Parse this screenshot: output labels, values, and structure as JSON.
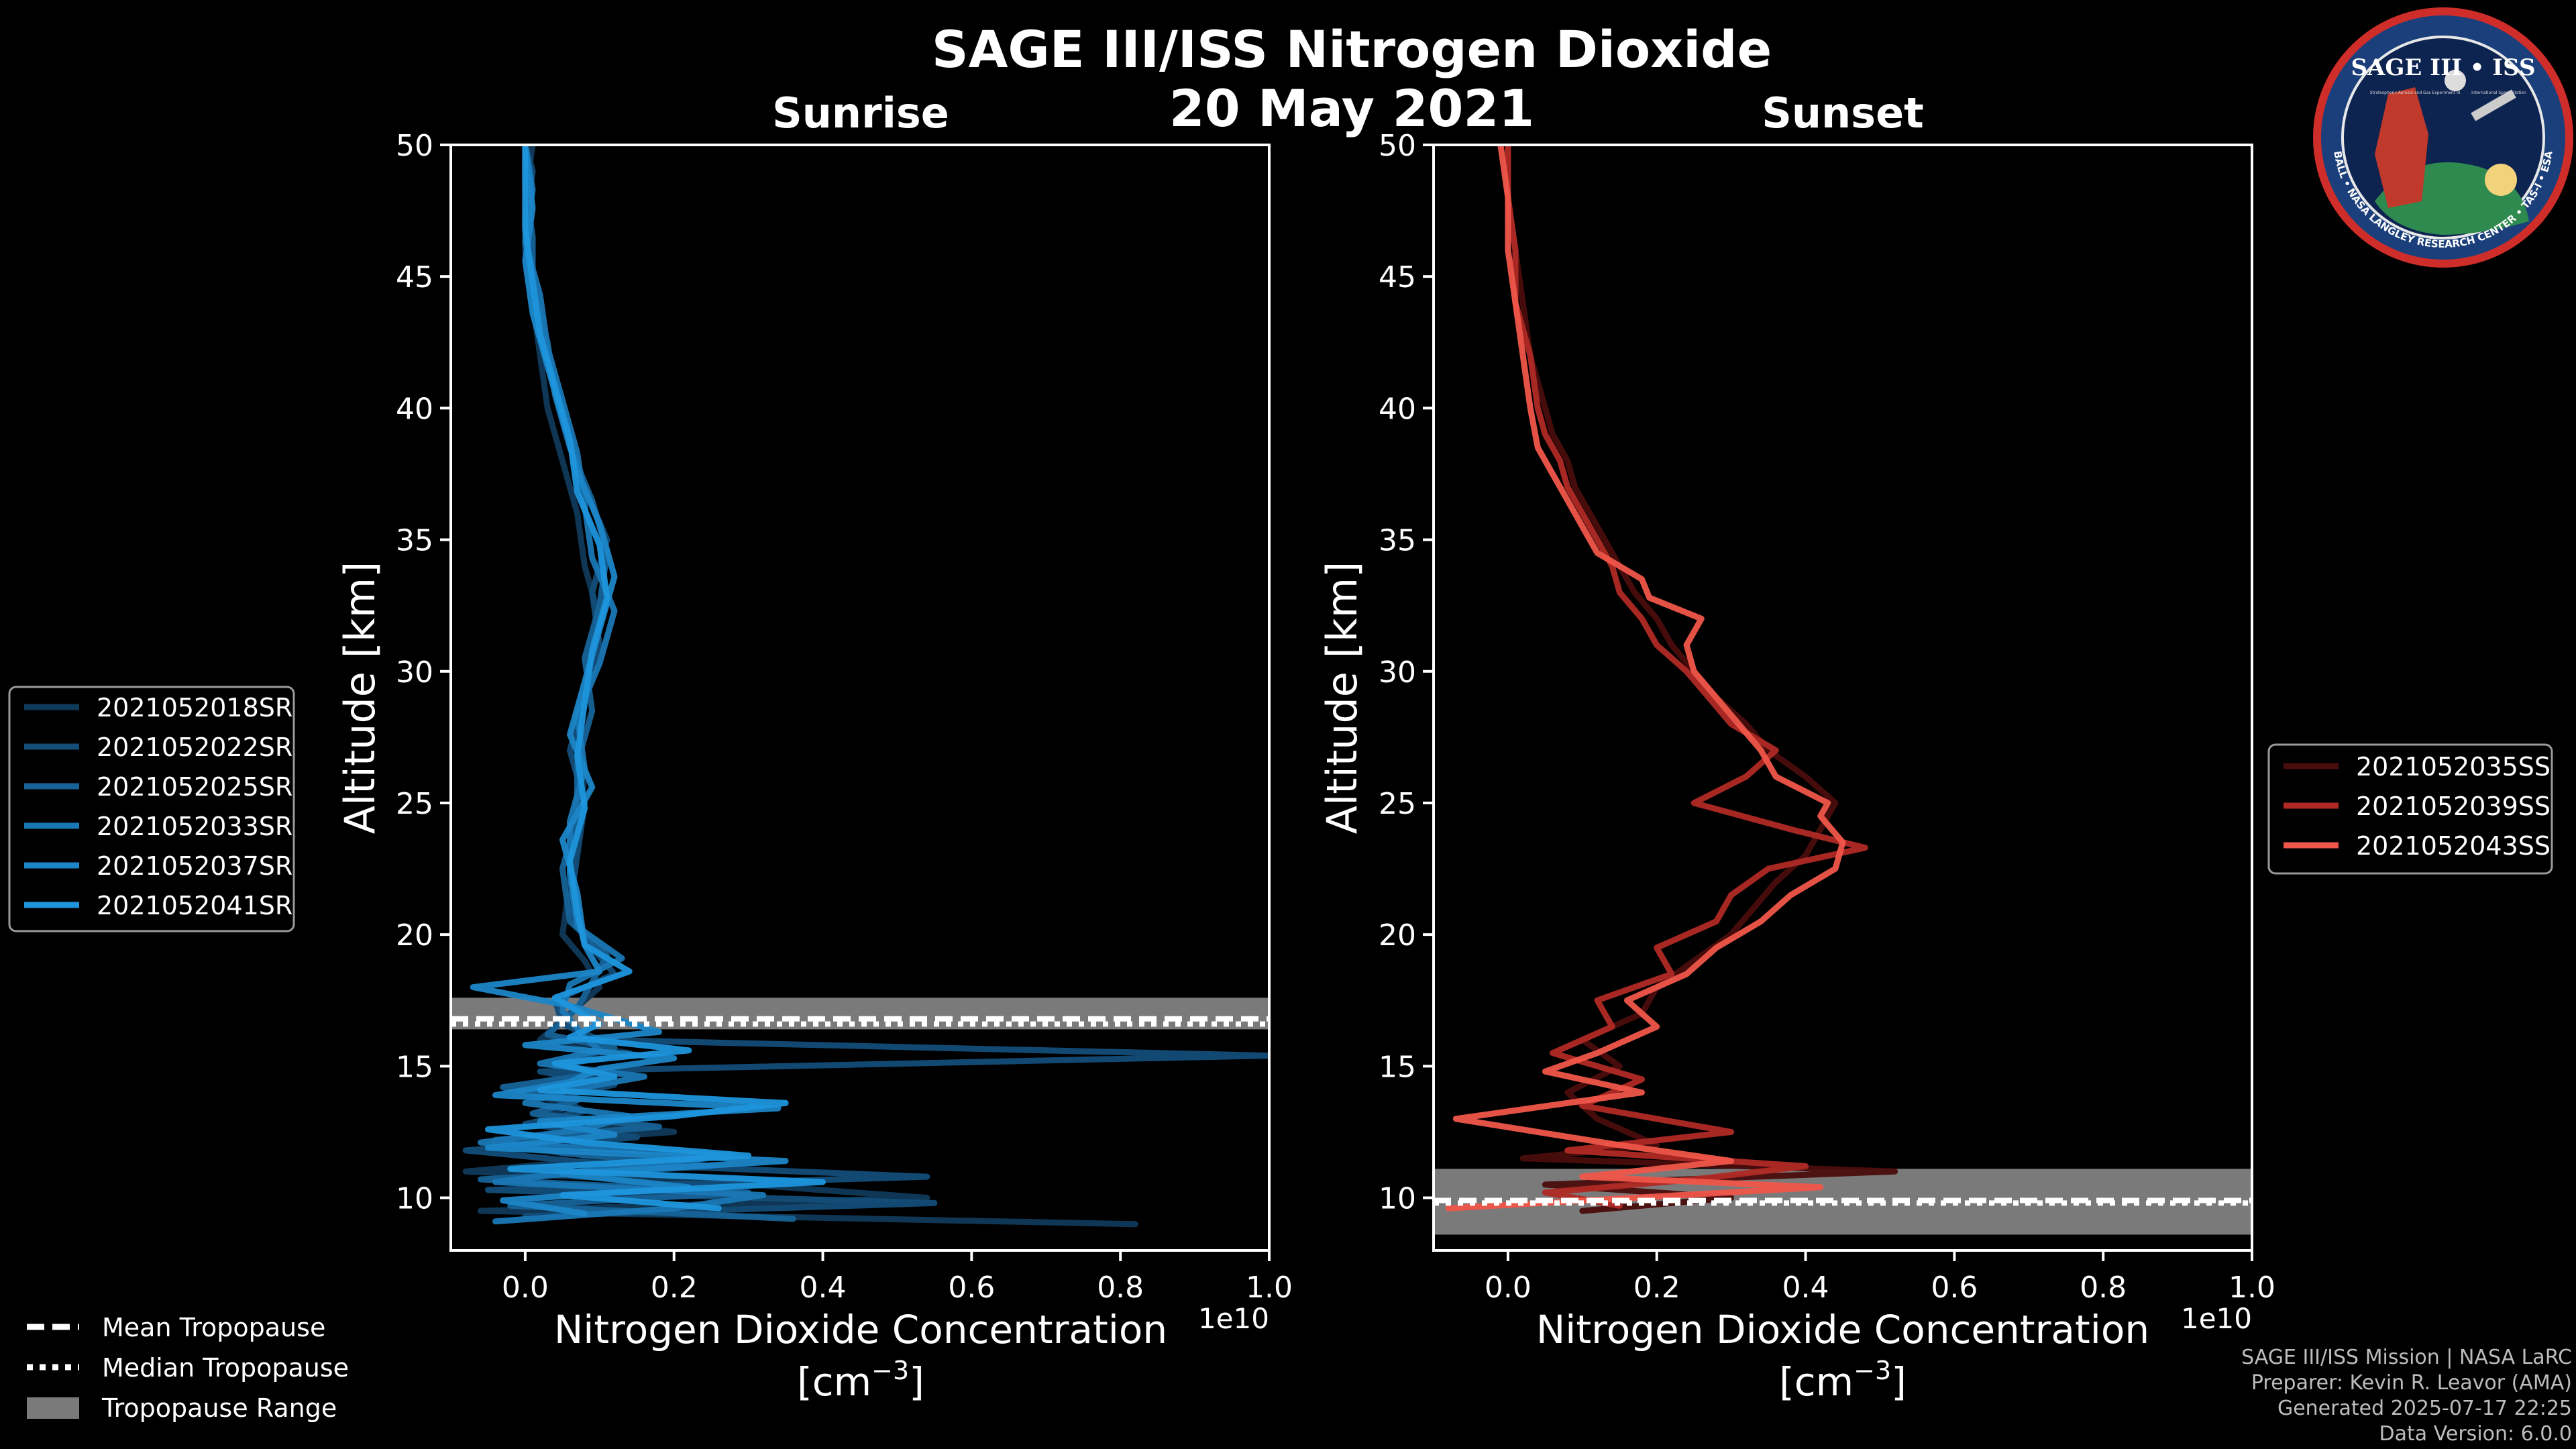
{
  "title": {
    "main": "SAGE III/ISS Nitrogen Dioxide",
    "date": "20 May 2021"
  },
  "logo": {
    "text": "SAGE III • ISS",
    "ring_text": "BALL • NASA LANGLEY RESEARCH CENTER • TAS-I • ESA",
    "subtitle_left": "Stratospheric Aerosol and Gas Experiment III",
    "subtitle_right": "International Space Station"
  },
  "credits": [
    "SAGE III/ISS Mission | NASA LaRC",
    "Preparer: Kevin R. Leavor (AMA)",
    "Generated 2025-07-17 22:25",
    "Data Version: 6.0.0"
  ],
  "tropopause_legend": {
    "mean": "Mean Tropopause",
    "median": "Median Tropopause",
    "range": "Tropopause Range"
  },
  "colors": {
    "background": "#000000",
    "sunrise": "#1a8fd4",
    "sunset": "#f0564a",
    "tropo_band": "#7a7a7a"
  },
  "chart_data": [
    {
      "type": "line",
      "title": "Sunrise",
      "xlabel": "Nitrogen Dioxide Concentration",
      "xlabel_units": "[cm$^{-3}$]",
      "xlabel_units_text": "[cm",
      "xlabel_units_sup": "−3",
      "xlabel_units_close": "]",
      "ylabel": "Altitude [km]",
      "offset_label": "1e10",
      "xlim": [
        -0.1,
        1.0
      ],
      "ylim": [
        8,
        50
      ],
      "xticks": [
        0.0,
        0.2,
        0.4,
        0.6,
        0.8,
        1.0
      ],
      "xtick_labels": [
        "0.0",
        "0.2",
        "0.4",
        "0.6",
        "0.8",
        "1.0"
      ],
      "yticks": [
        10,
        15,
        20,
        25,
        30,
        35,
        40,
        45,
        50
      ],
      "ytick_labels": [
        "10",
        "15",
        "20",
        "25",
        "30",
        "35",
        "40",
        "45",
        "50"
      ],
      "tropopause": {
        "range": [
          16.4,
          17.6
        ],
        "mean": 16.8,
        "median": 16.6
      },
      "series": [
        {
          "name": "2021052018SR",
          "color": "#103a5a",
          "altitude": [
            9.0,
            9.5,
            10.0,
            10.5,
            11.0,
            11.5,
            12.0,
            12.5,
            13.0,
            13.5,
            14.0,
            14.5,
            15.0,
            15.5,
            16.0,
            17.0,
            18.0,
            19.0,
            20.0,
            22.0,
            24.0,
            26.0,
            28.0,
            30.0,
            32.0,
            34.0,
            36.0,
            38.0,
            40.0,
            42.0,
            44.0,
            46.0,
            48.0,
            50.0
          ],
          "values": [
            0.82,
            -0.06,
            0.54,
            0.3,
            -0.08,
            0.12,
            -0.05,
            0.2,
            0.02,
            0.06,
            0.0,
            0.1,
            0.04,
            0.14,
            0.02,
            0.06,
            0.1,
            0.08,
            0.05,
            0.06,
            0.07,
            0.08,
            0.07,
            0.09,
            0.1,
            0.08,
            0.07,
            0.05,
            0.03,
            0.02,
            0.01,
            0.0,
            0.0,
            0.01
          ]
        },
        {
          "name": "2021052022SR",
          "color": "#134d78",
          "altitude": [
            9.3,
            9.8,
            10.3,
            10.8,
            11.3,
            11.8,
            12.3,
            12.8,
            13.3,
            13.8,
            14.3,
            14.8,
            15.4,
            16.0,
            16.6,
            17.5,
            18.5,
            19.5,
            21.0,
            23.0,
            25.0,
            27.0,
            29.0,
            31.0,
            33.0,
            35.0,
            37.0,
            39.0,
            41.0,
            43.0,
            45.0,
            47.0,
            49.0,
            50.0
          ],
          "values": [
            0.0,
            0.55,
            -0.05,
            0.54,
            0.1,
            -0.08,
            0.15,
            0.0,
            0.08,
            0.04,
            0.12,
            0.02,
            1.0,
            0.1,
            0.05,
            0.04,
            0.12,
            0.09,
            0.06,
            0.07,
            0.08,
            0.06,
            0.08,
            0.1,
            0.09,
            0.11,
            0.08,
            0.06,
            0.04,
            0.02,
            0.01,
            0.0,
            0.01,
            0.0
          ]
        },
        {
          "name": "2021052025SR",
          "color": "#176298",
          "altitude": [
            9.2,
            9.7,
            10.2,
            10.7,
            11.2,
            11.7,
            12.2,
            12.7,
            13.2,
            13.7,
            14.2,
            14.7,
            15.2,
            15.7,
            16.2,
            17.2,
            18.2,
            19.2,
            20.5,
            22.5,
            24.5,
            26.5,
            28.5,
            30.5,
            32.5,
            34.5,
            36.5,
            38.5,
            40.5,
            42.5,
            44.5,
            46.5,
            48.5,
            50.0
          ],
          "values": [
            0.36,
            -0.02,
            0.3,
            -0.06,
            0.25,
            0.05,
            -0.04,
            0.18,
            0.01,
            0.07,
            -0.03,
            0.09,
            0.05,
            0.12,
            0.03,
            0.07,
            0.09,
            0.11,
            0.06,
            0.05,
            0.07,
            0.07,
            0.09,
            0.08,
            0.1,
            0.11,
            0.09,
            0.06,
            0.04,
            0.03,
            0.01,
            0.01,
            0.0,
            0.0
          ]
        },
        {
          "name": "2021052033SR",
          "color": "#1a77b5",
          "altitude": [
            9.1,
            9.6,
            10.1,
            10.6,
            11.1,
            11.6,
            12.1,
            12.6,
            13.1,
            13.6,
            14.1,
            14.6,
            15.1,
            15.6,
            16.1,
            17.1,
            18.1,
            19.1,
            20.3,
            22.3,
            24.3,
            26.3,
            28.3,
            30.3,
            32.3,
            34.3,
            36.3,
            38.3,
            40.3,
            42.3,
            44.3,
            46.3,
            48.3,
            50.0
          ],
          "values": [
            -0.04,
            0.2,
            0.32,
            -0.04,
            0.1,
            0.28,
            -0.06,
            0.08,
            0.14,
            0.0,
            0.06,
            0.16,
            0.02,
            0.1,
            0.08,
            0.05,
            0.06,
            0.13,
            0.07,
            0.06,
            0.06,
            0.08,
            0.07,
            0.1,
            0.12,
            0.09,
            0.08,
            0.07,
            0.05,
            0.03,
            0.02,
            0.0,
            0.01,
            0.0
          ]
        },
        {
          "name": "2021052037SR",
          "color": "#1c86c8",
          "altitude": [
            9.4,
            9.9,
            10.4,
            10.9,
            11.4,
            11.9,
            12.4,
            12.9,
            13.4,
            13.9,
            14.4,
            14.9,
            15.3,
            15.8,
            16.3,
            17.3,
            18.0,
            18.6,
            19.6,
            21.6,
            23.6,
            25.6,
            27.6,
            29.6,
            31.6,
            33.6,
            35.6,
            37.6,
            39.6,
            41.6,
            43.6,
            45.6,
            47.6,
            50.0
          ],
          "values": [
            0.08,
            -0.03,
            0.22,
            0.05,
            0.35,
            -0.05,
            0.12,
            0.02,
            0.34,
            -0.04,
            0.06,
            0.1,
            0.2,
            0.0,
            0.18,
            0.06,
            -0.07,
            0.1,
            0.08,
            0.07,
            0.05,
            0.09,
            0.06,
            0.08,
            0.1,
            0.12,
            0.1,
            0.07,
            0.05,
            0.03,
            0.01,
            0.0,
            0.01,
            0.0
          ]
        },
        {
          "name": "2021052041SR",
          "color": "#1e95dc",
          "altitude": [
            9.6,
            10.1,
            10.6,
            11.1,
            11.6,
            12.1,
            12.6,
            13.1,
            13.6,
            14.1,
            14.6,
            15.1,
            15.6,
            16.1,
            16.6,
            17.6,
            18.6,
            19.6,
            20.8,
            22.8,
            24.8,
            26.8,
            28.8,
            30.8,
            32.8,
            34.8,
            36.8,
            38.8,
            40.8,
            42.8,
            44.8,
            46.8,
            48.8,
            50.0
          ],
          "values": [
            0.26,
            0.05,
            0.4,
            -0.02,
            0.3,
            0.08,
            -0.05,
            0.2,
            0.35,
            0.02,
            0.12,
            0.04,
            0.22,
            0.06,
            0.1,
            0.04,
            0.14,
            0.08,
            0.07,
            0.06,
            0.08,
            0.07,
            0.08,
            0.09,
            0.11,
            0.1,
            0.07,
            0.06,
            0.04,
            0.02,
            0.01,
            0.0,
            0.0,
            0.0
          ]
        }
      ]
    },
    {
      "type": "line",
      "title": "Sunset",
      "xlabel": "Nitrogen Dioxide Concentration",
      "xlabel_units": "[cm$^{-3}$]",
      "xlabel_units_text": "[cm",
      "xlabel_units_sup": "−3",
      "xlabel_units_close": "]",
      "ylabel": "Altitude [km]",
      "offset_label": "1e10",
      "xlim": [
        -0.1,
        1.0
      ],
      "ylim": [
        8,
        50
      ],
      "xticks": [
        0.0,
        0.2,
        0.4,
        0.6,
        0.8,
        1.0
      ],
      "xtick_labels": [
        "0.0",
        "0.2",
        "0.4",
        "0.6",
        "0.8",
        "1.0"
      ],
      "yticks": [
        10,
        15,
        20,
        25,
        30,
        35,
        40,
        45,
        50
      ],
      "ytick_labels": [
        "10",
        "15",
        "20",
        "25",
        "30",
        "35",
        "40",
        "45",
        "50"
      ],
      "tropopause": {
        "range": [
          8.6,
          11.1
        ],
        "mean": 9.9,
        "median": 9.8
      },
      "series": [
        {
          "name": "2021052035SS",
          "color": "#4a0d0d",
          "altitude": [
            9.5,
            10.0,
            10.5,
            11.0,
            11.5,
            12.0,
            13.0,
            14.0,
            15.0,
            16.0,
            17.0,
            18.0,
            19.0,
            20.0,
            21.0,
            22.0,
            23.0,
            24.0,
            25.0,
            26.0,
            27.0,
            28.0,
            29.0,
            30.0,
            31.0,
            32.0,
            33.0,
            34.0,
            35.0,
            36.0,
            37.0,
            38.0,
            39.0,
            40.0,
            42.0,
            44.0,
            46.0,
            48.0,
            50.0
          ],
          "values": [
            0.1,
            0.3,
            0.05,
            0.52,
            0.02,
            0.2,
            0.12,
            0.08,
            0.15,
            0.1,
            0.18,
            0.2,
            0.25,
            0.3,
            0.33,
            0.36,
            0.4,
            0.42,
            0.44,
            0.4,
            0.35,
            0.32,
            0.28,
            0.25,
            0.22,
            0.2,
            0.17,
            0.15,
            0.13,
            0.11,
            0.09,
            0.08,
            0.06,
            0.05,
            0.03,
            0.02,
            0.01,
            0.0,
            0.0
          ]
        },
        {
          "name": "2021052039SS",
          "color": "#b02a25",
          "altitude": [
            9.7,
            10.2,
            10.7,
            11.2,
            11.8,
            12.5,
            13.5,
            14.5,
            15.5,
            16.5,
            17.5,
            18.5,
            19.5,
            20.5,
            21.5,
            22.5,
            23.3,
            24.0,
            25.0,
            26.0,
            27.0,
            28.0,
            29.0,
            30.0,
            31.0,
            32.0,
            33.0,
            34.0,
            35.0,
            36.0,
            37.0,
            38.0,
            39.0,
            40.0,
            42.0,
            44.0,
            46.0,
            48.0,
            50.0
          ],
          "values": [
            0.15,
            0.05,
            0.25,
            0.4,
            0.08,
            0.3,
            0.1,
            0.18,
            0.06,
            0.14,
            0.12,
            0.22,
            0.2,
            0.28,
            0.3,
            0.35,
            0.48,
            0.38,
            0.25,
            0.32,
            0.36,
            0.3,
            0.27,
            0.24,
            0.2,
            0.18,
            0.15,
            0.14,
            0.12,
            0.1,
            0.08,
            0.07,
            0.05,
            0.04,
            0.03,
            0.01,
            0.01,
            0.0,
            0.0
          ]
        },
        {
          "name": "2021052043SS",
          "color": "#f0564a",
          "altitude": [
            9.6,
            10.4,
            10.8,
            11.4,
            12.0,
            13.0,
            14.0,
            14.8,
            15.5,
            16.5,
            17.5,
            18.5,
            19.5,
            20.5,
            21.5,
            22.5,
            23.5,
            24.5,
            25.0,
            26.0,
            27.0,
            28.0,
            29.0,
            30.0,
            31.0,
            32.0,
            32.8,
            33.5,
            34.5,
            35.5,
            36.5,
            37.5,
            38.5,
            40.0,
            42.0,
            44.0,
            46.0,
            48.0,
            50.0
          ],
          "values": [
            -0.08,
            0.42,
            0.1,
            0.3,
            0.15,
            -0.07,
            0.18,
            0.05,
            0.12,
            0.2,
            0.16,
            0.24,
            0.28,
            0.34,
            0.38,
            0.44,
            0.45,
            0.42,
            0.43,
            0.36,
            0.34,
            0.31,
            0.28,
            0.25,
            0.24,
            0.26,
            0.19,
            0.18,
            0.12,
            0.1,
            0.08,
            0.06,
            0.04,
            0.03,
            0.02,
            0.01,
            0.0,
            0.0,
            -0.01
          ]
        }
      ]
    }
  ]
}
